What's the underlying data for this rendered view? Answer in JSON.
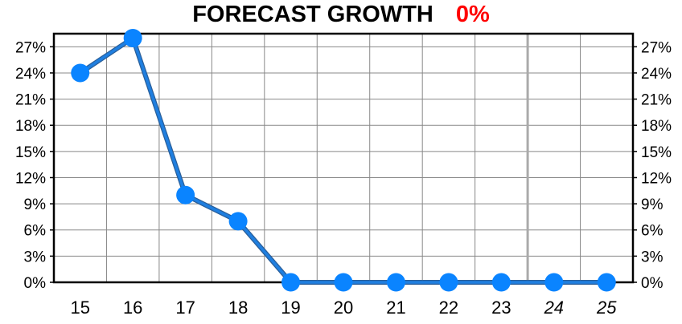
{
  "chart_data": {
    "type": "line",
    "title": "FORECAST GROWTH",
    "title_value": "0%",
    "title_value_color": "#ff0000",
    "categories": [
      "15",
      "16",
      "17",
      "18",
      "19",
      "20",
      "21",
      "22",
      "23",
      "24",
      "25"
    ],
    "italic_categories": [
      "24",
      "25"
    ],
    "series": [
      {
        "values": [
          24,
          28,
          10,
          7,
          0,
          0,
          0,
          0,
          0,
          0,
          0
        ],
        "color": "#1f7fe0",
        "marker_color": "#0a84ff"
      }
    ],
    "y_ticks": [
      "0%",
      "3%",
      "6%",
      "9%",
      "12%",
      "15%",
      "18%",
      "21%",
      "24%",
      "27%"
    ],
    "y_tick_values": [
      0,
      3,
      6,
      9,
      12,
      15,
      18,
      21,
      24,
      27
    ],
    "ylim": [
      0,
      28.5
    ],
    "grid": true,
    "y_axis_sides": "both"
  }
}
